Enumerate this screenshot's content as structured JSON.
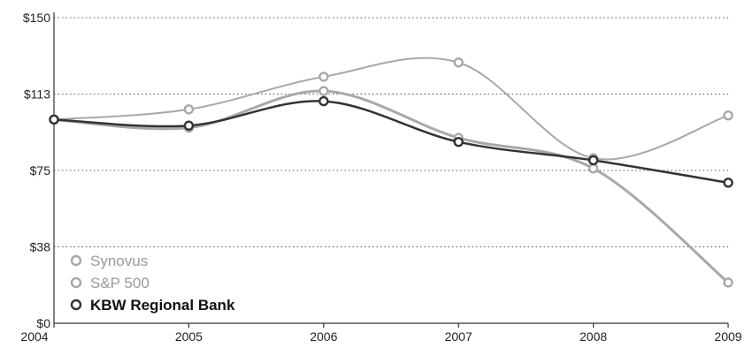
{
  "chart_data": {
    "type": "line",
    "title": "",
    "xlabel": "",
    "ylabel": "",
    "x": [
      "2004",
      "2005",
      "2006",
      "2007",
      "2008",
      "2009"
    ],
    "y_ticks": [
      "$0",
      "$38",
      "$75",
      "$113",
      "$150"
    ],
    "y_tick_values": [
      0,
      37.5,
      75,
      112.5,
      150
    ],
    "ylim": [
      0,
      150
    ],
    "grid": "horizontal-dotted",
    "legend_position": "bottom-left",
    "series": [
      {
        "name": "Synovus",
        "values": [
          100,
          96,
          114,
          91,
          76,
          20
        ],
        "color": "#a8a8a8",
        "line_width": 3,
        "label_weight": "normal"
      },
      {
        "name": "S&P 500",
        "values": [
          100,
          105,
          121,
          128,
          81,
          102
        ],
        "color": "#a8a8a8",
        "line_width": 2,
        "label_weight": "normal"
      },
      {
        "name": "KBW Regional Bank",
        "values": [
          100,
          97,
          109,
          89,
          80,
          69
        ],
        "color": "#333333",
        "line_width": 2.5,
        "label_weight": "bold"
      }
    ]
  }
}
